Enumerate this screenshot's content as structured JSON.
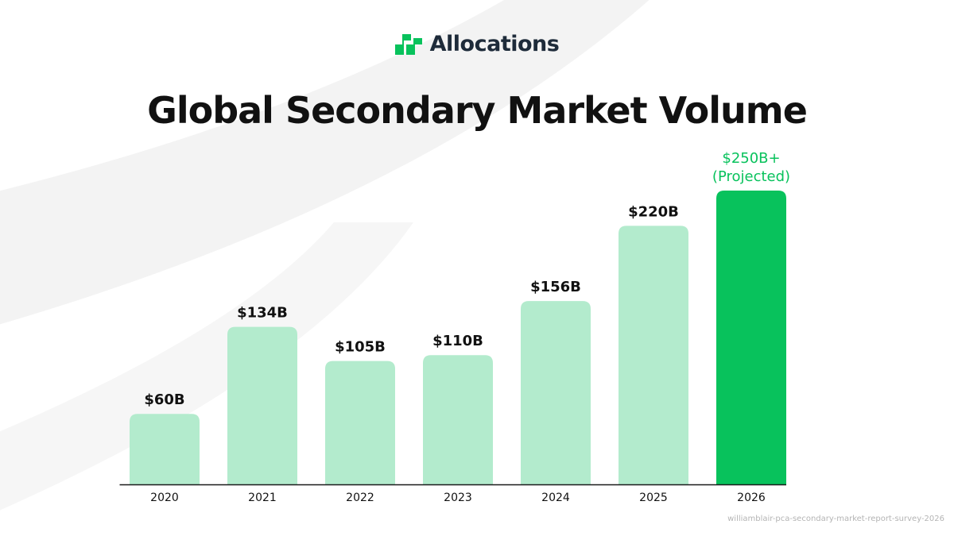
{
  "brand": {
    "name": "Allocations",
    "logo_icon": "allocations-logo-icon",
    "accent_color": "#08c25c",
    "text_color": "#1e2b3a"
  },
  "title": "Global Secondary Market Volume",
  "source_note": "williamblair-pca-secondary-market-report-survey-2026",
  "colors": {
    "bar_light": "#b3ebcd",
    "bar_highlight": "#08c25c",
    "label_dark": "#111111",
    "label_highlight": "#08c25c",
    "axis": "#1a1a1a"
  },
  "chart_data": {
    "type": "bar",
    "title": "Global Secondary Market Volume",
    "xlabel": "",
    "ylabel": "",
    "unit": "USD billions",
    "categories": [
      "2020",
      "2021",
      "2022",
      "2023",
      "2024",
      "2025",
      "2026"
    ],
    "values": [
      60,
      134,
      105,
      110,
      156,
      220,
      250
    ],
    "data_labels": [
      "$60B",
      "$134B",
      "$105B",
      "$110B",
      "$156B",
      "$220B",
      "$250B+\n(Projected)"
    ],
    "highlight_index": 6,
    "ylim": [
      0,
      250
    ],
    "grid": false,
    "legend": "none"
  }
}
